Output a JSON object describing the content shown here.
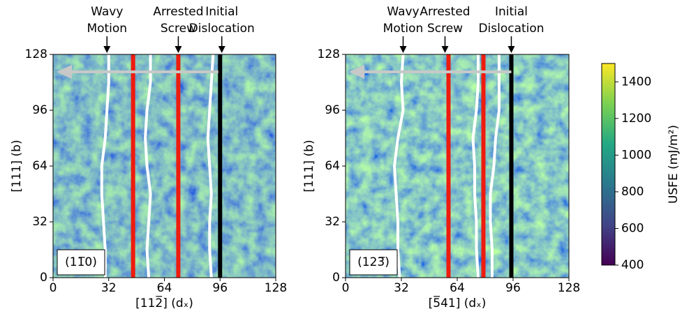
{
  "chart_data": [
    {
      "type": "heatmap",
      "panel_label": "(11̅0)",
      "xlabel": "[112̅] (dₓ)",
      "ylabel": "[111] (b)",
      "xlim": [
        0,
        128
      ],
      "ylim": [
        0,
        128
      ],
      "xticks": [
        0,
        32,
        64,
        96,
        128
      ],
      "yticks": [
        0,
        32,
        64,
        96,
        128
      ],
      "annotations": [
        {
          "label": [
            "Wavy",
            "Motion"
          ],
          "x": 31
        },
        {
          "label": [
            "Arrested",
            "Screw"
          ],
          "x": 72
        },
        {
          "label": [
            "Initial",
            "Dislocation"
          ],
          "x": 97
        }
      ],
      "vlines": [
        {
          "x": 46,
          "color": "#ee1c0e"
        },
        {
          "x": 72,
          "color": "#ee1c0e"
        },
        {
          "x": 96,
          "color": "#000000"
        }
      ],
      "series": [
        {
          "color": "#ffffff",
          "x": [
            30,
            30,
            29,
            28,
            28,
            30,
            31,
            32,
            32
          ],
          "y": [
            0,
            16,
            32,
            48,
            64,
            80,
            96,
            112,
            128
          ]
        },
        {
          "color": "#ffffff",
          "x": [
            55,
            54,
            55,
            56,
            54,
            53,
            54,
            56,
            56
          ],
          "y": [
            0,
            16,
            32,
            48,
            64,
            80,
            96,
            112,
            128
          ]
        },
        {
          "color": "#ffffff",
          "x": [
            91,
            90,
            90,
            91,
            90,
            89,
            90,
            91,
            92
          ],
          "y": [
            0,
            16,
            32,
            48,
            64,
            80,
            96,
            112,
            128
          ]
        }
      ],
      "arrow": {
        "from": 95,
        "to": 2,
        "y": 118,
        "color": "#c8c8c8"
      }
    },
    {
      "type": "heatmap",
      "panel_label": "(123̅)",
      "xlabel": "[5̅41] (dₓ)",
      "ylabel": "[111] (b)",
      "xlim": [
        0,
        128
      ],
      "ylim": [
        0,
        128
      ],
      "xticks": [
        0,
        32,
        64,
        96,
        128
      ],
      "yticks": [
        0,
        32,
        64,
        96,
        128
      ],
      "annotations": [
        {
          "label": [
            "Wavy",
            "Motion"
          ],
          "x": 33
        },
        {
          "label": [
            "Arrested",
            "Screw"
          ],
          "x": 57
        },
        {
          "label": [
            "Initial",
            "Dislocation"
          ],
          "x": 95
        }
      ],
      "vlines": [
        {
          "x": 59,
          "color": "#ee1c0e"
        },
        {
          "x": 79,
          "color": "#ee1c0e"
        },
        {
          "x": 95,
          "color": "#000000"
        }
      ],
      "series": [
        {
          "color": "#ffffff",
          "x": [
            31,
            30,
            30,
            29,
            28,
            30,
            33,
            32,
            33
          ],
          "y": [
            0,
            16,
            32,
            48,
            64,
            80,
            96,
            112,
            128
          ]
        },
        {
          "color": "#ffffff",
          "x": [
            76,
            75,
            75,
            74,
            74,
            73,
            75,
            76,
            76
          ],
          "y": [
            0,
            16,
            32,
            48,
            64,
            80,
            96,
            112,
            128
          ]
        },
        {
          "color": "#ffffff",
          "x": [
            84,
            84,
            83,
            83,
            85,
            86,
            88,
            88,
            88
          ],
          "y": [
            0,
            16,
            32,
            48,
            64,
            80,
            96,
            112,
            128
          ]
        }
      ],
      "arrow": {
        "from": 95,
        "to": 2,
        "y": 118,
        "color": "#c8c8c8"
      }
    },
    {
      "type": "colorbar",
      "label": "USFE (mJ/m²)",
      "ylim": [
        400,
        1500
      ],
      "yticks": [
        400,
        600,
        800,
        1000,
        1200,
        1400
      ]
    }
  ]
}
